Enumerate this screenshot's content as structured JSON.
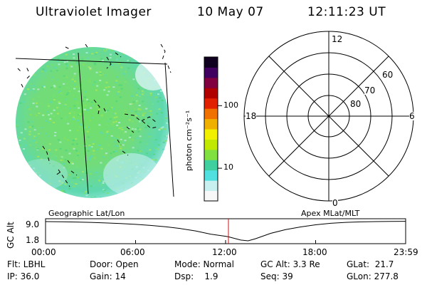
{
  "header": {
    "title": "Ultraviolet Imager",
    "date": "10 May 07",
    "time": "12:11:23 UT"
  },
  "colorbar": {
    "label": "photon cm⁻²s⁻¹",
    "ticks": [
      "100",
      "10"
    ],
    "tick_values": [
      100,
      10
    ],
    "range": [
      3,
      600
    ],
    "scale": "log",
    "colors": [
      "#f8f8f8",
      "#c8f0f0",
      "#50e0e0",
      "#40d0a0",
      "#80e040",
      "#c0e800",
      "#f0f000",
      "#f0b000",
      "#f07000",
      "#e02000",
      "#b00000",
      "#800040",
      "#400060",
      "#100020"
    ]
  },
  "polar_plot": {
    "labels": {
      "top": "12",
      "bottom": "0",
      "left": "18",
      "right": "6"
    },
    "latitude_labels": [
      "80",
      "70",
      "60"
    ]
  },
  "altitude_strip": {
    "ylabel": "GC Alt",
    "yticks": [
      "9.0",
      "1.8"
    ],
    "left_title": "Geographic Lat/Lon",
    "right_title": "Apex MLat/MLT",
    "xticks": [
      "00:00",
      "06:00",
      "12:00",
      "18:00",
      "23:59"
    ]
  },
  "chart_data": {
    "type": "line",
    "x_unit": "UT hours",
    "y_unit": "Re",
    "x": [
      0,
      1,
      2,
      3,
      4,
      5,
      6,
      7,
      8,
      9,
      10,
      11,
      12,
      12.2,
      13,
      13.5,
      14,
      15,
      16,
      17,
      18,
      19,
      20,
      21,
      22,
      23,
      23.98
    ],
    "y": [
      9.0,
      8.95,
      8.85,
      8.7,
      8.5,
      8.25,
      7.95,
      7.55,
      7.05,
      6.4,
      5.5,
      4.3,
      3.5,
      3.3,
      2.1,
      1.8,
      2.6,
      4.6,
      6.0,
      7.0,
      7.8,
      8.35,
      8.7,
      8.9,
      9.0,
      9.05,
      9.1
    ],
    "xlim": [
      0,
      24
    ],
    "ylim": [
      1.8,
      9.0
    ],
    "marker_time": 12.19,
    "marker_color": "#d01010"
  },
  "footer": {
    "flt": "Flt: LBHL",
    "door": "Door: Open",
    "mode": "Mode: Normal",
    "gc_alt": "GC Alt: 3.3 Re",
    "glat": "GLat:  21.7",
    "ip": "IP: 36.0",
    "gain": "Gain: 14",
    "dsp": "Dsp:    1.9",
    "seq": "Seq: 39",
    "glon": "GLon: 277.8"
  }
}
